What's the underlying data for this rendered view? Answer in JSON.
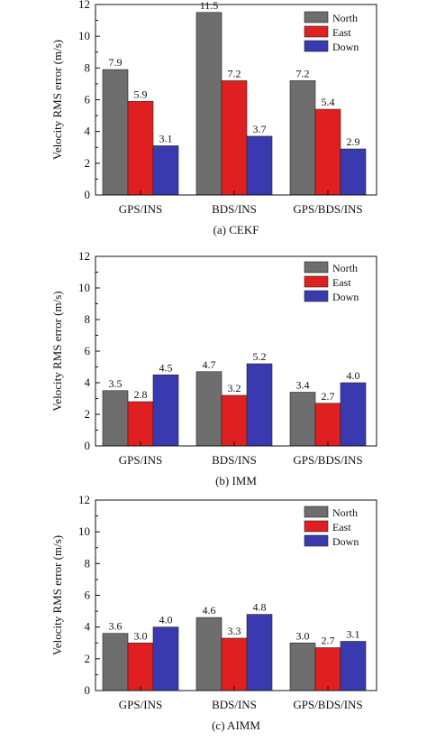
{
  "chart_data": [
    {
      "type": "bar",
      "caption": "(a) CEKF",
      "ylabel": "Velocity RMS error (m/s)",
      "ylim": [
        0,
        12
      ],
      "yticks": [
        0,
        2,
        4,
        6,
        8,
        10,
        12
      ],
      "categories": [
        "GPS/INS",
        "BDS/INS",
        "GPS/BDS/INS"
      ],
      "legend_position": "top-right",
      "series": [
        {
          "name": "North",
          "values": [
            7.9,
            11.5,
            7.2
          ],
          "color": "#6e6e6e"
        },
        {
          "name": "East",
          "values": [
            5.9,
            7.2,
            5.4
          ],
          "color": "#e02020"
        },
        {
          "name": "Down",
          "values": [
            3.1,
            3.7,
            2.9
          ],
          "color": "#3a3ab0"
        }
      ],
      "value_labels": [
        [
          "7.9",
          "11.5",
          "7.2"
        ],
        [
          "5.9",
          "7.2",
          "5.4"
        ],
        [
          "3.1",
          "3.7",
          "2.9"
        ]
      ]
    },
    {
      "type": "bar",
      "caption": "(b) IMM",
      "ylabel": "Velocity RMS error (m/s)",
      "ylim": [
        0,
        12
      ],
      "yticks": [
        0,
        2,
        4,
        6,
        8,
        10,
        12
      ],
      "categories": [
        "GPS/INS",
        "BDS/INS",
        "GPS/BDS/INS"
      ],
      "legend_position": "top-right",
      "series": [
        {
          "name": "North",
          "values": [
            3.5,
            4.7,
            3.4
          ],
          "color": "#6e6e6e"
        },
        {
          "name": "East",
          "values": [
            2.8,
            3.2,
            2.7
          ],
          "color": "#e02020"
        },
        {
          "name": "Down",
          "values": [
            4.5,
            5.2,
            4.0
          ],
          "color": "#3a3ab0"
        }
      ],
      "value_labels": [
        [
          "3.5",
          "4.7",
          "3.4"
        ],
        [
          "2.8",
          "3.2",
          "2.7"
        ],
        [
          "4.5",
          "5.2",
          "4.0"
        ]
      ]
    },
    {
      "type": "bar",
      "caption": "(c) AIMM",
      "ylabel": "Velocity RMS error (m/s)",
      "ylim": [
        0,
        12
      ],
      "yticks": [
        0,
        2,
        4,
        6,
        8,
        10,
        12
      ],
      "categories": [
        "GPS/INS",
        "BDS/INS",
        "GPS/BDS/INS"
      ],
      "legend_position": "top-right",
      "series": [
        {
          "name": "North",
          "values": [
            3.6,
            4.6,
            3.0
          ],
          "color": "#6e6e6e"
        },
        {
          "name": "East",
          "values": [
            3.0,
            3.3,
            2.7
          ],
          "color": "#e02020"
        },
        {
          "name": "Down",
          "values": [
            4.0,
            4.8,
            3.1
          ],
          "color": "#3a3ab0"
        }
      ],
      "value_labels": [
        [
          "3.6",
          "4.6",
          "3.0"
        ],
        [
          "3.0",
          "3.3",
          "2.7"
        ],
        [
          "4.0",
          "4.8",
          "3.1"
        ]
      ]
    }
  ]
}
